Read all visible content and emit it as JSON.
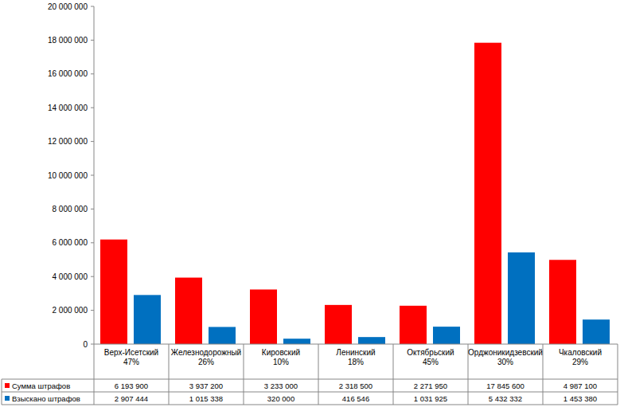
{
  "chart_data": {
    "type": "bar",
    "categories": [
      "Верх-Исетский\n47%",
      "Железнодорожный\n26%",
      "Кировский\n10%",
      "Ленинский\n18%",
      "Октябрьский\n45%",
      "Орджоникидзевский\n30%",
      "Чкаловский\n29%"
    ],
    "series": [
      {
        "name": "Сумма штрафов",
        "color": "#ff0000",
        "values": [
          6193900,
          3937200,
          3233000,
          2318500,
          2271950,
          17845600,
          4987100
        ],
        "value_labels": [
          "6 193 900",
          "3 937 200",
          "3 233 000",
          "2 318 500",
          "2 271 950",
          "17 845 600",
          "4 987 100"
        ]
      },
      {
        "name": "Взыскано штрафов",
        "color": "#0070c0",
        "values": [
          2907444,
          1015338,
          320000,
          416546,
          1031925,
          5432332,
          1453380
        ],
        "value_labels": [
          "2 907 444",
          "1 015 338",
          "320 000",
          "416 546",
          "1 031 925",
          "5 432 332",
          "1 453 380"
        ]
      }
    ],
    "ylim": [
      0,
      20000000
    ],
    "yticks": [
      0,
      {
        "value": 2000000,
        "label": "2 000 000"
      },
      {
        "value": 4000000,
        "label": "4 000 000"
      },
      {
        "value": 6000000,
        "label": "6 000 000"
      },
      {
        "value": 8000000,
        "label": "8 000 000"
      },
      {
        "value": 10000000,
        "label": "10 000 000"
      },
      {
        "value": 12000000,
        "label": "12 000 000"
      },
      {
        "value": 14000000,
        "label": "14 000 000"
      },
      {
        "value": 16000000,
        "label": "16 000 000"
      },
      {
        "value": 18000000,
        "label": "18 000 000"
      },
      {
        "value": 20000000,
        "label": "20 000 000"
      }
    ],
    "grid": false
  }
}
